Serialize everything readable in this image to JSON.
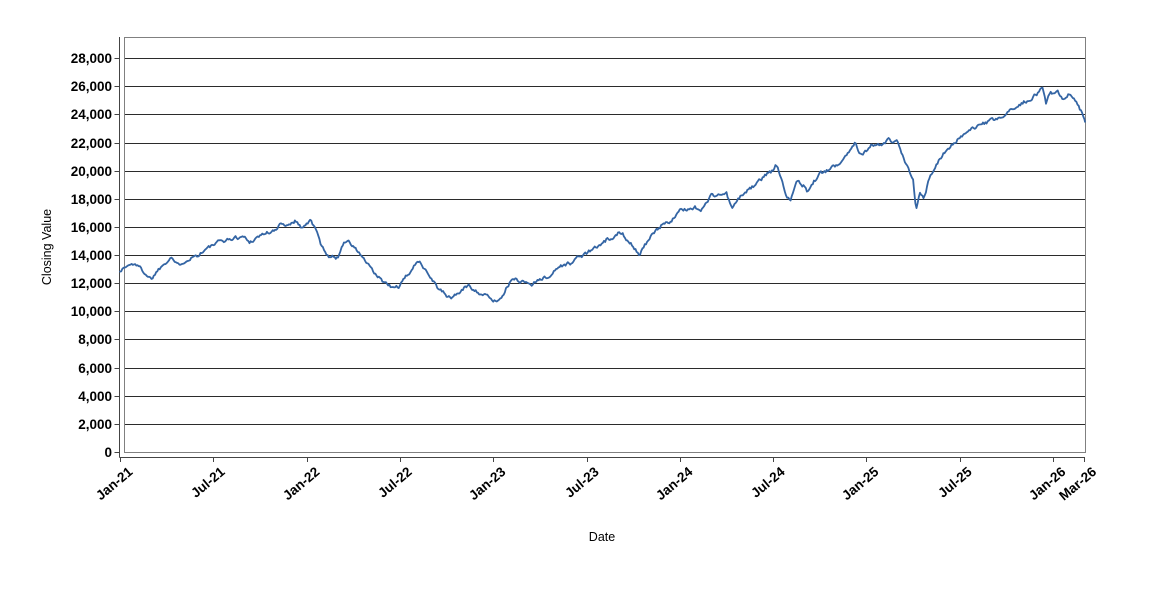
{
  "window": {
    "background": "#ffffff"
  },
  "chart_data": {
    "type": "line",
    "title": "",
    "xlabel": "Date",
    "ylabel": "Closing Value",
    "legend": "none",
    "grid": "horizontal-solid-black",
    "x_axis": {
      "tick_labels": [
        "Jan-21",
        "Jul-21",
        "Jan-22",
        "Jul-22",
        "Jan-23",
        "Jul-23",
        "Jan-24",
        "Jul-24",
        "Jan-25",
        "Jul-25",
        "Jan-26",
        "Mar-26"
      ],
      "tick_months": [
        0,
        6,
        12,
        18,
        24,
        30,
        36,
        42,
        48,
        54,
        60,
        62
      ],
      "range_months": [
        0,
        62.1
      ]
    },
    "y_axis": {
      "tick_values": [
        0,
        2000,
        4000,
        6000,
        8000,
        10000,
        12000,
        14000,
        16000,
        18000,
        20000,
        22000,
        24000,
        26000,
        28000
      ],
      "axis_max": 29500
    },
    "series": [
      {
        "name": "Closing Value",
        "color": "#3465a4",
        "anchor_months": [
          0,
          0.5,
          1,
          1.5,
          2,
          2.4,
          3,
          3.3,
          3.7,
          4,
          4.5,
          5,
          5.5,
          6,
          6.5,
          7,
          7.5,
          8,
          8.3,
          9,
          9.5,
          10,
          10.4,
          10.8,
          11,
          11.3,
          11.6,
          12,
          12.3,
          12.7,
          13,
          13.5,
          14,
          14.4,
          14.6,
          15,
          15.5,
          16,
          16.5,
          17,
          17.5,
          18,
          18.5,
          19,
          19.3,
          20,
          20.5,
          21,
          21.3,
          22,
          22.4,
          23,
          23.5,
          24,
          24.3,
          24.7,
          25,
          25.3,
          26,
          26.5,
          27,
          27.5,
          28,
          28.5,
          29,
          29.5,
          30,
          30.5,
          31,
          31.4,
          31.7,
          32,
          32.3,
          32.7,
          33,
          33.4,
          33.7,
          34,
          34.5,
          35,
          35.5,
          36,
          36.5,
          37,
          37.3,
          38,
          38.5,
          39,
          39.4,
          39.7,
          40,
          40.5,
          41,
          41.5,
          42,
          42.15,
          42.5,
          42.8,
          43.1,
          43.5,
          44,
          44.2,
          44.6,
          45,
          45.5,
          46,
          46.5,
          47,
          47.3,
          47.6,
          48,
          48.4,
          49,
          49.4,
          49.7,
          50,
          50.4,
          51,
          51.2,
          51.45,
          51.7,
          52,
          52.5,
          53,
          53.5,
          54,
          54.5,
          55,
          55.5,
          56,
          56.5,
          57,
          57.5,
          58,
          58.5,
          59,
          59.3,
          59.55,
          59.8,
          60,
          60.3,
          60.6,
          61,
          61.3,
          61.6,
          62,
          62.1
        ],
        "anchor_values": [
          12900,
          13250,
          13400,
          12850,
          12300,
          12900,
          13600,
          13900,
          13250,
          13500,
          13800,
          14000,
          14400,
          14700,
          15000,
          15100,
          15250,
          15300,
          14900,
          15400,
          15600,
          15700,
          16300,
          16100,
          16300,
          16500,
          16000,
          16200,
          16450,
          15500,
          14500,
          13900,
          13800,
          15000,
          15050,
          14600,
          14000,
          13200,
          12500,
          12050,
          11650,
          11800,
          12600,
          13300,
          13600,
          12400,
          11600,
          11100,
          10950,
          11500,
          11850,
          11400,
          11100,
          10800,
          10700,
          11400,
          11900,
          12300,
          12100,
          11900,
          12400,
          12350,
          13000,
          13300,
          13400,
          13900,
          14100,
          14500,
          14700,
          15200,
          14950,
          15500,
          15600,
          15000,
          14700,
          14050,
          14650,
          15100,
          15700,
          16300,
          16500,
          17100,
          17300,
          17400,
          17100,
          18200,
          18300,
          18350,
          17250,
          17850,
          18300,
          18700,
          19100,
          19700,
          20000,
          20450,
          19600,
          18400,
          17950,
          19300,
          18900,
          18450,
          19200,
          19750,
          20000,
          20300,
          20900,
          21500,
          22050,
          21250,
          21400,
          21900,
          21700,
          22200,
          21900,
          22000,
          20800,
          19300,
          17100,
          18500,
          18100,
          19300,
          20500,
          21300,
          21800,
          22350,
          22700,
          23050,
          23300,
          23500,
          23700,
          24000,
          24400,
          24800,
          25100,
          25450,
          26100,
          24850,
          25600,
          25400,
          25700,
          25000,
          25400,
          25150,
          24600,
          23800,
          23450
        ]
      }
    ]
  },
  "style": {
    "line_color": "#3465a4",
    "grid_color": "#2b2b2b",
    "axis_color": "#444444",
    "plot_border_color": "#808080",
    "text_color": "#000000"
  }
}
